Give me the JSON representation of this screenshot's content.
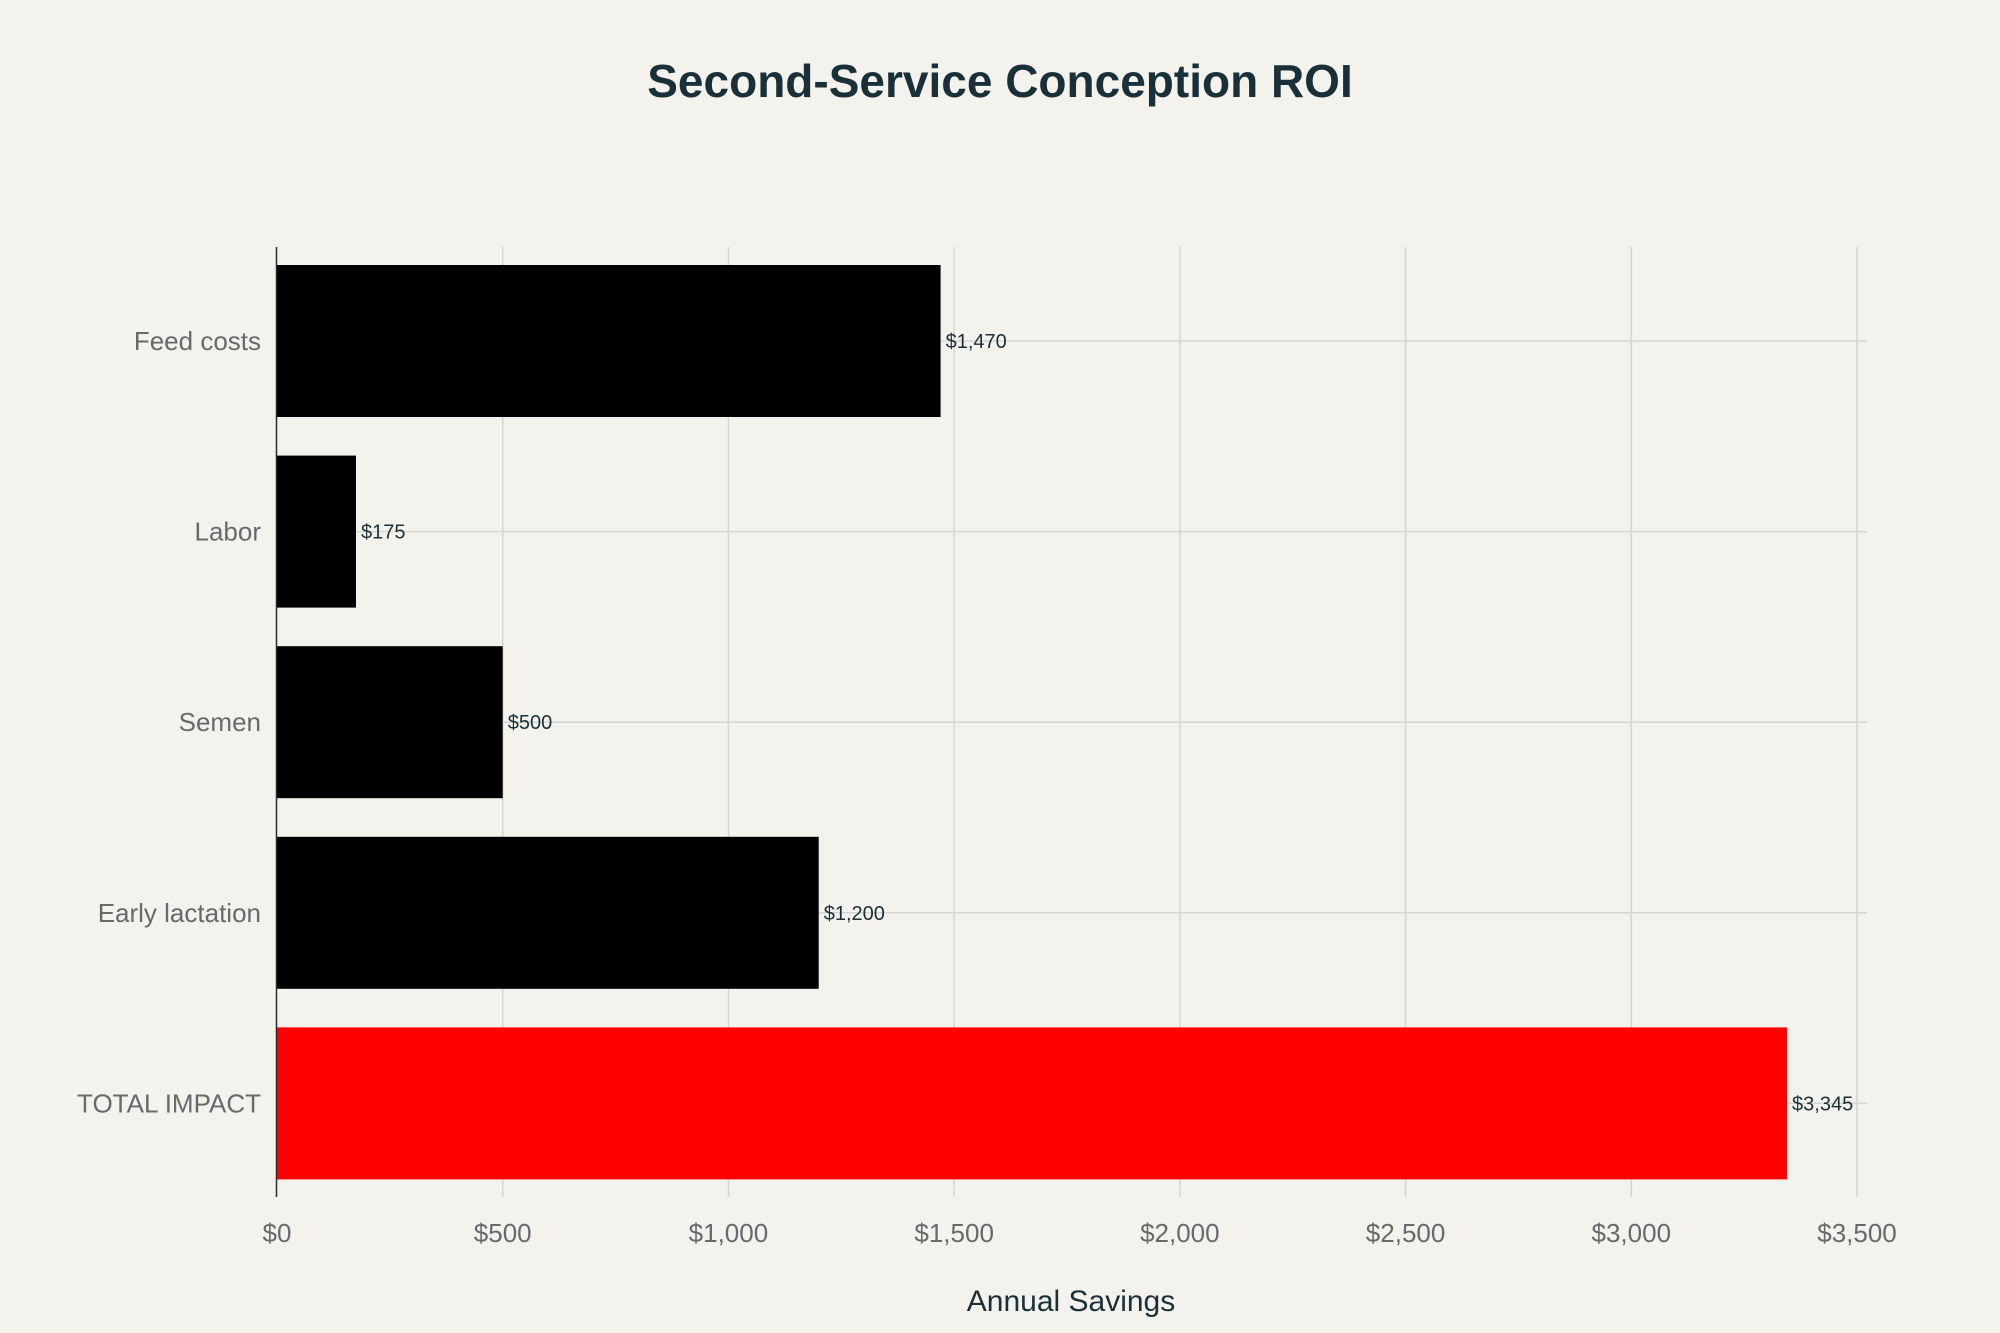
{
  "chart_data": {
    "type": "bar",
    "orientation": "horizontal",
    "title": "Second-Service Conception ROI",
    "xlabel": "Annual Savings",
    "ylabel": "",
    "categories": [
      "Feed costs",
      "Labor",
      "Semen",
      "Early lactation",
      "TOTAL IMPACT"
    ],
    "values": [
      1470,
      175,
      500,
      1200,
      3345
    ],
    "value_labels": [
      "$1,470",
      "$175",
      "$500",
      "$1,200",
      "$3,345"
    ],
    "bar_colors": [
      "#000000",
      "#000000",
      "#000000",
      "#000000",
      "#ff0000"
    ],
    "xlim": [
      0,
      3500
    ],
    "x_ticks": [
      0,
      500,
      1000,
      1500,
      2000,
      2500,
      3000,
      3500
    ],
    "x_tick_labels": [
      "$0",
      "$500",
      "$1,000",
      "$1,500",
      "$2,000",
      "$2,500",
      "$3,000",
      "$3,500"
    ],
    "grid": true,
    "legend": "none"
  },
  "colors": {
    "background": "#f3f2ed",
    "title": "#1a3038",
    "highlight": "#ff0000",
    "bar": "#000000"
  }
}
